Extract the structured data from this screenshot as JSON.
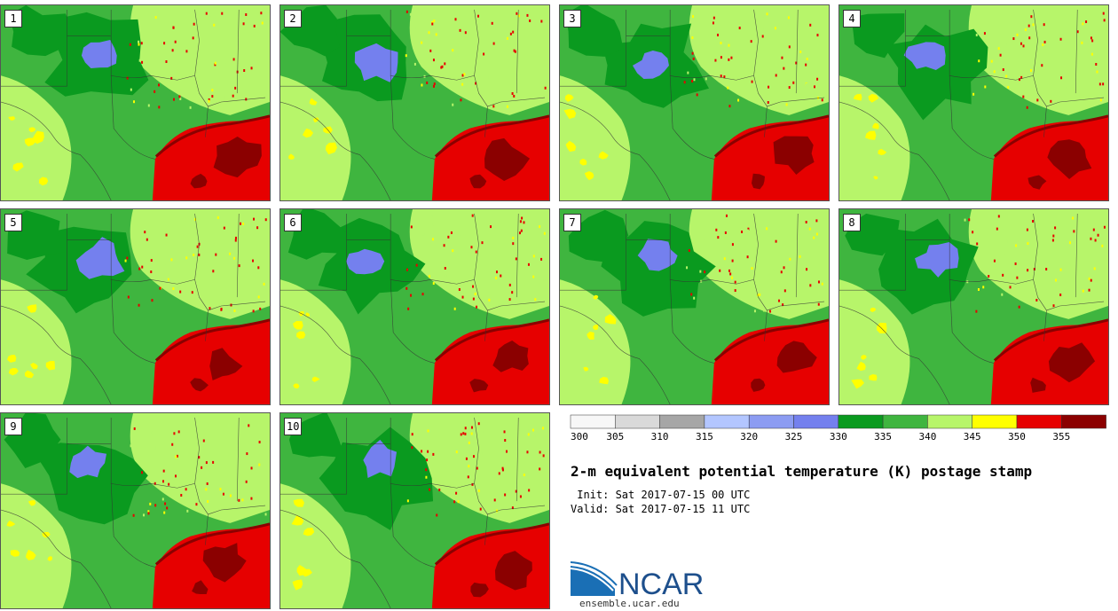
{
  "panels": [
    {
      "label": "1"
    },
    {
      "label": "2"
    },
    {
      "label": "3"
    },
    {
      "label": "4"
    },
    {
      "label": "5"
    },
    {
      "label": "6"
    },
    {
      "label": "7"
    },
    {
      "label": "8"
    },
    {
      "label": "9"
    },
    {
      "label": "10"
    }
  ],
  "legend": {
    "colors": [
      "#f7f7f7",
      "#d9d9d9",
      "#a6a6a6",
      "#b3c6ff",
      "#8c9cf2",
      "#7480ee",
      "#0a9a1f",
      "#3fb53f",
      "#b7f56a",
      "#ffff00",
      "#e60000",
      "#8b0000"
    ],
    "tick_labels": [
      "300",
      "305",
      "310",
      "315",
      "320",
      "325",
      "330",
      "335",
      "340",
      "345",
      "350",
      "355"
    ]
  },
  "title": "2-m equivalent potential temperature (K) postage stamp",
  "init": " Init: Sat 2017-07-15 00 UTC",
  "valid": "Valid: Sat 2017-07-15 11 UTC",
  "logo": {
    "text": "NCAR",
    "colors": {
      "blue": "#1a6fb5",
      "text": "#1d4f8c"
    }
  },
  "site": "ensemble.ucar.edu"
}
